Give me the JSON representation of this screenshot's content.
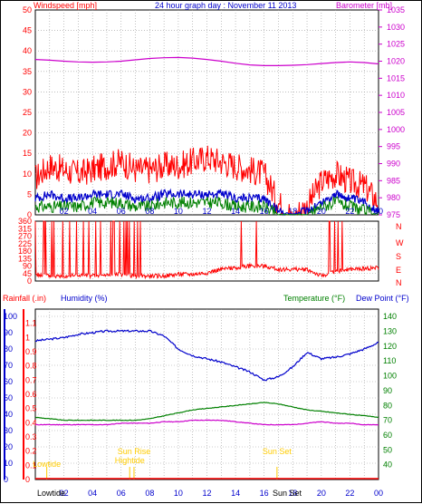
{
  "header": {
    "windspeed_label": "Windspeed [mph]",
    "title": "24 hour graph day : November 11 2013",
    "barometer_label": "Barometer [mb]"
  },
  "bottom_header": {
    "rainfall_label": "Rainfall (.in)",
    "humidity_label": "Humidity (%)",
    "temperature_label": "Temperature (°F)",
    "dewpoint_label": "Dew Point (°F)"
  },
  "compass_letters": [
    "N",
    "W",
    "S",
    "E",
    "N"
  ],
  "hour_ticks": [
    "02",
    "04",
    "06",
    "08",
    "10",
    "12",
    "14",
    "16",
    "18",
    "20",
    "22",
    "00"
  ],
  "events": {
    "lowtide_1": "Lowtide",
    "sunrise": "Sun Rise",
    "hightide": "Hightide",
    "sunset": "Sun Set",
    "bottom_labels": [
      "Lowtide",
      "Sun Set"
    ]
  },
  "colors": {
    "wind": "#ff0000",
    "wind_avg": "#0000cc",
    "wind_low": "#008000",
    "barometer": "#cc00cc",
    "humidity": "#0000cc",
    "temperature": "#008000",
    "dewpoint": "#cc00cc",
    "rain": "#ff0000",
    "events": "#ffcc00",
    "grid": "#999999"
  },
  "chart_data": [
    {
      "type": "line",
      "title": "24 hour graph day : November 11 2013",
      "ylabel": "Windspeed [mph]",
      "y2label": "Barometer [mb]",
      "ylim": [
        0,
        50
      ],
      "y2lim": [
        975,
        1035
      ],
      "yticks": [
        0,
        5,
        10,
        15,
        20,
        25,
        30,
        35,
        40,
        45,
        50
      ],
      "y2ticks": [
        975,
        980,
        985,
        990,
        995,
        1000,
        1005,
        1010,
        1015,
        1020,
        1025,
        1030,
        1035
      ],
      "x": [
        0,
        1,
        2,
        3,
        4,
        5,
        6,
        7,
        8,
        9,
        10,
        11,
        12,
        13,
        14,
        15,
        16,
        17,
        18,
        19,
        20,
        21,
        22,
        23,
        24
      ],
      "series": [
        {
          "name": "Windspeed [mph]",
          "values": [
            9,
            12,
            11,
            10,
            11,
            12,
            13,
            11,
            11,
            12,
            12,
            13,
            14,
            13,
            12,
            11,
            10,
            3,
            0,
            2,
            8,
            10,
            8,
            7,
            3
          ]
        },
        {
          "name": "Windspeed [mph]",
          "values": [
            4,
            5,
            4,
            4,
            5,
            5,
            5,
            4,
            4,
            5,
            5,
            5,
            5,
            5,
            4,
            4,
            4,
            1,
            0,
            1,
            3,
            5,
            4,
            3,
            1
          ]
        },
        {
          "name": "Windspeed [mph]",
          "values": [
            2,
            2,
            2,
            2,
            3,
            3,
            3,
            2,
            2,
            3,
            3,
            3,
            3,
            3,
            2,
            2,
            2,
            0,
            0,
            0,
            2,
            3,
            2,
            1,
            0
          ]
        },
        {
          "name": "Barometer [mb]",
          "values": [
            1020.5,
            1020.3,
            1020,
            1019.8,
            1019.7,
            1019.8,
            1020,
            1020.4,
            1020.8,
            1021,
            1021.1,
            1020.9,
            1020.5,
            1020,
            1019.4,
            1018.9,
            1018.7,
            1018.7,
            1018.8,
            1019,
            1019.3,
            1019.6,
            1019.8,
            1019.6,
            1019.2
          ]
        }
      ]
    },
    {
      "type": "line",
      "ylabel": "",
      "ylim": [
        0,
        360
      ],
      "yticks": [
        0,
        45,
        90,
        135,
        180,
        225,
        270,
        315,
        360
      ],
      "x": [
        0,
        1,
        2,
        3,
        4,
        5,
        6,
        7,
        8,
        9,
        10,
        11,
        12,
        13,
        14,
        15,
        16,
        17,
        18,
        19,
        20,
        21,
        22,
        23,
        24
      ],
      "series": [
        {
          "name": "",
          "values": [
            40,
            30,
            30,
            35,
            30,
            35,
            40,
            30,
            30,
            30,
            40,
            40,
            50,
            70,
            80,
            90,
            90,
            70,
            70,
            70,
            30,
            60,
            70,
            75,
            80
          ]
        }
      ]
    },
    {
      "type": "line",
      "ylabel": "Humidity (%)",
      "y_left_outer_label": "Rainfall (.in)",
      "y2label": "Temperature (°F)",
      "ylim": [
        0,
        100
      ],
      "rain_lim": [
        0,
        1.2
      ],
      "y2lim": [
        30,
        145
      ],
      "humidity_ticks": [
        0,
        10,
        20,
        30,
        40,
        50,
        60,
        70,
        80,
        90,
        100
      ],
      "rain_ticks": [
        0,
        0.1,
        0.2,
        0.3,
        0.4,
        0.5,
        0.6,
        0.7,
        0.8,
        0.9,
        1,
        1.1
      ],
      "temp_ticks": [
        40,
        50,
        60,
        70,
        80,
        90,
        100,
        110,
        120,
        130,
        140
      ],
      "x": [
        0,
        1,
        2,
        3,
        4,
        5,
        6,
        7,
        8,
        9,
        10,
        11,
        12,
        13,
        14,
        15,
        16,
        17,
        18,
        19,
        20,
        21,
        22,
        23,
        24
      ],
      "series": [
        {
          "name": "Humidity (%)",
          "values": [
            85,
            86,
            87,
            89,
            90,
            91,
            91,
            91,
            91,
            88,
            80,
            76,
            74,
            72,
            69,
            66,
            61,
            63,
            69,
            78,
            74,
            75,
            77,
            80,
            84
          ]
        },
        {
          "name": "Temperature (°F)",
          "values": [
            72,
            71,
            70,
            70,
            70,
            70,
            70,
            70,
            71,
            73,
            75,
            77,
            78,
            79,
            80,
            81,
            82,
            81,
            79,
            77,
            76,
            75,
            74,
            73,
            72
          ]
        },
        {
          "name": "Dew Point (°F)",
          "values": [
            67,
            67,
            67,
            67,
            67,
            67,
            68,
            68,
            68,
            69,
            69,
            70,
            70,
            70,
            69,
            68,
            67,
            67,
            67,
            68,
            69,
            68,
            68,
            67,
            67
          ]
        },
        {
          "name": "Rainfall (.in)",
          "values": [
            0,
            0,
            0,
            0,
            0,
            0,
            0,
            0,
            0,
            0,
            0,
            0,
            0,
            0,
            0,
            0,
            0,
            0,
            0,
            0,
            0,
            0,
            0,
            0,
            0
          ]
        }
      ],
      "events": [
        {
          "label": "Lowtide",
          "hour": 0.8
        },
        {
          "label": "Sun Rise",
          "hour": 6.9
        },
        {
          "label": "Hightide",
          "hour": 6.6
        },
        {
          "label": "Sun Set",
          "hour": 16.9
        }
      ]
    }
  ]
}
